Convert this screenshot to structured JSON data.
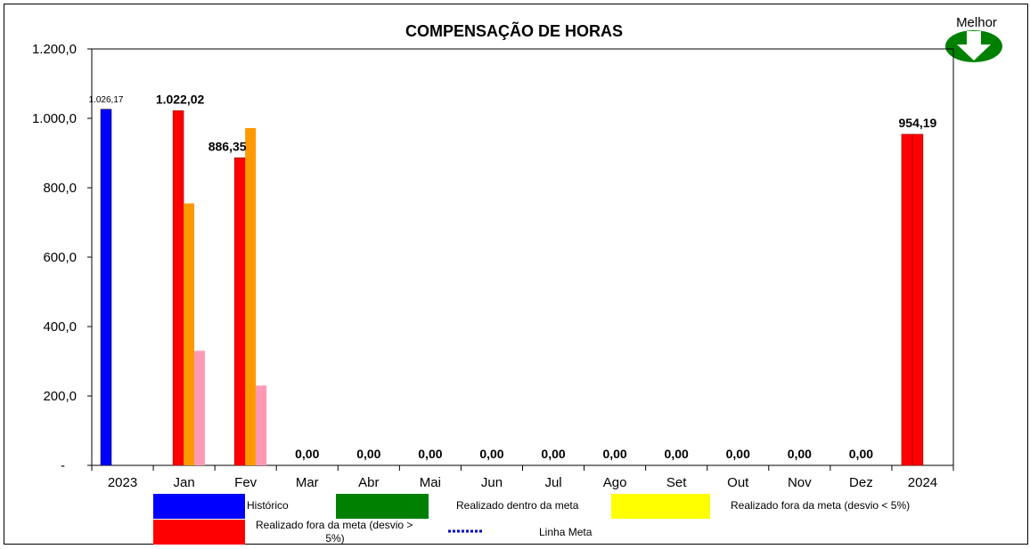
{
  "chart_data": {
    "type": "bar",
    "title": "COMPENSAÇÃO DE HORAS",
    "better_direction_label": "Melhor",
    "better_direction_icon": "arrow-down-icon",
    "categories": [
      "2023",
      "Jan",
      "Fev",
      "Mar",
      "Abr",
      "Mai",
      "Jun",
      "Jul",
      "Ago",
      "Set",
      "Out",
      "Nov",
      "Dez",
      "2024"
    ],
    "ylim": [
      0,
      1200
    ],
    "yticks": [
      {
        "value": 0,
        "label": "-"
      },
      {
        "value": 200,
        "label": "200,0"
      },
      {
        "value": 400,
        "label": "400,0"
      },
      {
        "value": 600,
        "label": "600,0"
      },
      {
        "value": 800,
        "label": "800,0"
      },
      {
        "value": 1000,
        "label": "1.000,0"
      },
      {
        "value": 1200,
        "label": "1.200,0"
      }
    ],
    "series": [
      {
        "key": "historico",
        "color": "#0000ff",
        "values": [
          1026.17,
          null,
          null,
          null,
          null,
          null,
          null,
          null,
          null,
          null,
          null,
          null,
          null,
          null
        ]
      },
      {
        "key": "realizado",
        "color": "#ff0000",
        "values": [
          null,
          1022.02,
          886.35,
          0,
          0,
          0,
          0,
          0,
          0,
          0,
          0,
          0,
          0,
          954.19
        ]
      },
      {
        "key": "orange",
        "color": "#ff9900",
        "values": [
          null,
          755,
          972,
          null,
          null,
          null,
          null,
          null,
          null,
          null,
          null,
          null,
          null,
          null
        ]
      },
      {
        "key": "pink",
        "color": "#ff99b3",
        "values": [
          null,
          330,
          230,
          null,
          null,
          null,
          null,
          null,
          null,
          null,
          null,
          null,
          null,
          null
        ]
      }
    ],
    "data_labels": [
      "1.026,17",
      "1.022,02",
      "886,35",
      "0,00",
      "0,00",
      "0,00",
      "0,00",
      "0,00",
      "0,00",
      "0,00",
      "0,00",
      "0,00",
      "0,00",
      "954,19"
    ],
    "legend": [
      {
        "label": "Histórico",
        "color": "#0000ff"
      },
      {
        "label": "Realizado dentro da meta",
        "color": "#008000"
      },
      {
        "label": "Realizado fora da meta (desvio < 5%)",
        "color": "#ffff00"
      },
      {
        "label": "Realizado fora da meta (desvio >",
        "label2": "5%)",
        "color": "#ff0000"
      },
      {
        "label": "Linha Meta",
        "color": "#0000cc"
      }
    ]
  }
}
